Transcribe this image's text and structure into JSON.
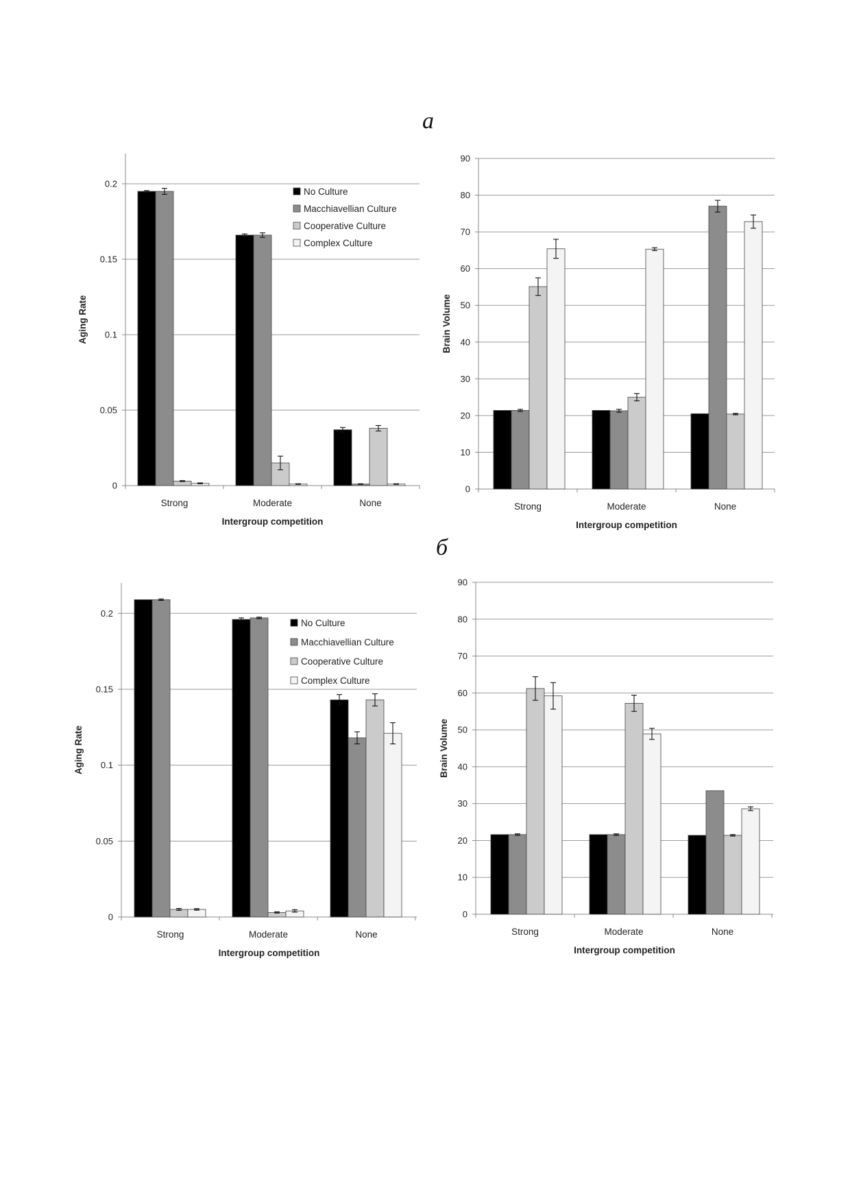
{
  "panels": [
    {
      "letter": "а"
    },
    {
      "letter": "б"
    }
  ],
  "colors": {
    "No Culture": "#000000",
    "Macchiavellian Culture": "#8c8c8c",
    "Cooperative Culture": "#cbcbcb",
    "Complex Culture": "#f4f4f4"
  },
  "chart_data": [
    {
      "type": "bar",
      "panel": "а",
      "categories": [
        "Strong",
        "Moderate",
        "None"
      ],
      "xlabel": "Intergroup competition",
      "ylabel": "Aging Rate",
      "ylim": [
        0,
        0.22
      ],
      "yticks": [
        0,
        0.05,
        0.1,
        0.15,
        0.2
      ],
      "ytick_labels": [
        "0",
        "0.05",
        "0.1",
        "0.15",
        "0.2"
      ],
      "grid": true,
      "legend_position": "top-right",
      "series": [
        {
          "name": "No Culture",
          "values": [
            0.195,
            0.166,
            0.037
          ],
          "errors": [
            0.0005,
            0.0008,
            0.0015
          ]
        },
        {
          "name": "Macchiavellian Culture",
          "values": [
            0.195,
            0.166,
            0.001
          ],
          "errors": [
            0.002,
            0.0015,
            0.0002
          ]
        },
        {
          "name": "Cooperative Culture",
          "values": [
            0.003,
            0.015,
            0.038
          ],
          "errors": [
            0.0003,
            0.0045,
            0.0018
          ]
        },
        {
          "name": "Complex Culture",
          "values": [
            0.0015,
            0.001,
            0.001
          ],
          "errors": [
            0.0003,
            0.0002,
            0.0002
          ]
        }
      ]
    },
    {
      "type": "bar",
      "panel": "а",
      "categories": [
        "Strong",
        "Moderate",
        "None"
      ],
      "xlabel": "Intergroup competition",
      "ylabel": "Brain Volume",
      "ylim": [
        0,
        90
      ],
      "yticks": [
        0,
        10,
        20,
        30,
        40,
        50,
        60,
        70,
        80,
        90
      ],
      "ytick_labels": [
        "0",
        "10",
        "20",
        "30",
        "40",
        "50",
        "60",
        "70",
        "80",
        "90"
      ],
      "grid": true,
      "series": [
        {
          "name": "No Culture",
          "values": [
            21.4,
            21.4,
            20.5
          ],
          "errors": [
            0,
            0,
            0
          ]
        },
        {
          "name": "Macchiavellian Culture",
          "values": [
            21.4,
            21.3,
            77.0
          ],
          "errors": [
            0.3,
            0.4,
            1.6
          ]
        },
        {
          "name": "Cooperative Culture",
          "values": [
            55.1,
            25.0,
            20.4
          ],
          "errors": [
            2.4,
            1.0,
            0.2
          ]
        },
        {
          "name": "Complex Culture",
          "values": [
            65.4,
            65.3,
            72.8
          ],
          "errors": [
            2.6,
            0.4,
            1.8
          ]
        }
      ]
    },
    {
      "type": "bar",
      "panel": "б",
      "categories": [
        "Strong",
        "Moderate",
        "None"
      ],
      "xlabel": "Intergroup competition",
      "ylabel": "Aging Rate",
      "ylim": [
        0,
        0.22
      ],
      "yticks": [
        0,
        0.05,
        0.1,
        0.15,
        0.2
      ],
      "ytick_labels": [
        "0",
        "0.05",
        "0.1",
        "0.15",
        "0.2"
      ],
      "grid": true,
      "legend_position": "top-right",
      "series": [
        {
          "name": "No Culture",
          "values": [
            0.209,
            0.196,
            0.143
          ],
          "errors": [
            0,
            0.001,
            0.0035
          ]
        },
        {
          "name": "Macchiavellian Culture",
          "values": [
            0.209,
            0.197,
            0.118
          ],
          "errors": [
            0.0005,
            0.0005,
            0.004
          ]
        },
        {
          "name": "Cooperative Culture",
          "values": [
            0.005,
            0.003,
            0.143
          ],
          "errors": [
            0.0006,
            0.0004,
            0.004
          ]
        },
        {
          "name": "Complex Culture",
          "values": [
            0.005,
            0.004,
            0.121
          ],
          "errors": [
            0.0005,
            0.0008,
            0.007
          ]
        }
      ]
    },
    {
      "type": "bar",
      "panel": "б",
      "categories": [
        "Strong",
        "Moderate",
        "None"
      ],
      "xlabel": "Intergroup competition",
      "ylabel": "Brain Volume",
      "ylim": [
        0,
        90
      ],
      "yticks": [
        0,
        10,
        20,
        30,
        40,
        50,
        60,
        70,
        80,
        90
      ],
      "ytick_labels": [
        "0",
        "10",
        "20",
        "30",
        "40",
        "50",
        "60",
        "70",
        "80",
        "90"
      ],
      "grid": true,
      "series": [
        {
          "name": "No Culture",
          "values": [
            21.6,
            21.6,
            21.4
          ],
          "errors": [
            0,
            0,
            0
          ]
        },
        {
          "name": "Macchiavellian Culture",
          "values": [
            21.6,
            21.6,
            33.5
          ],
          "errors": [
            0.2,
            0.2,
            0
          ]
        },
        {
          "name": "Cooperative Culture",
          "values": [
            61.2,
            57.2,
            21.4
          ],
          "errors": [
            3.2,
            2.2,
            0.2
          ]
        },
        {
          "name": "Complex Culture",
          "values": [
            59.2,
            48.9,
            28.6
          ],
          "errors": [
            3.6,
            1.5,
            0.5
          ]
        }
      ]
    }
  ]
}
